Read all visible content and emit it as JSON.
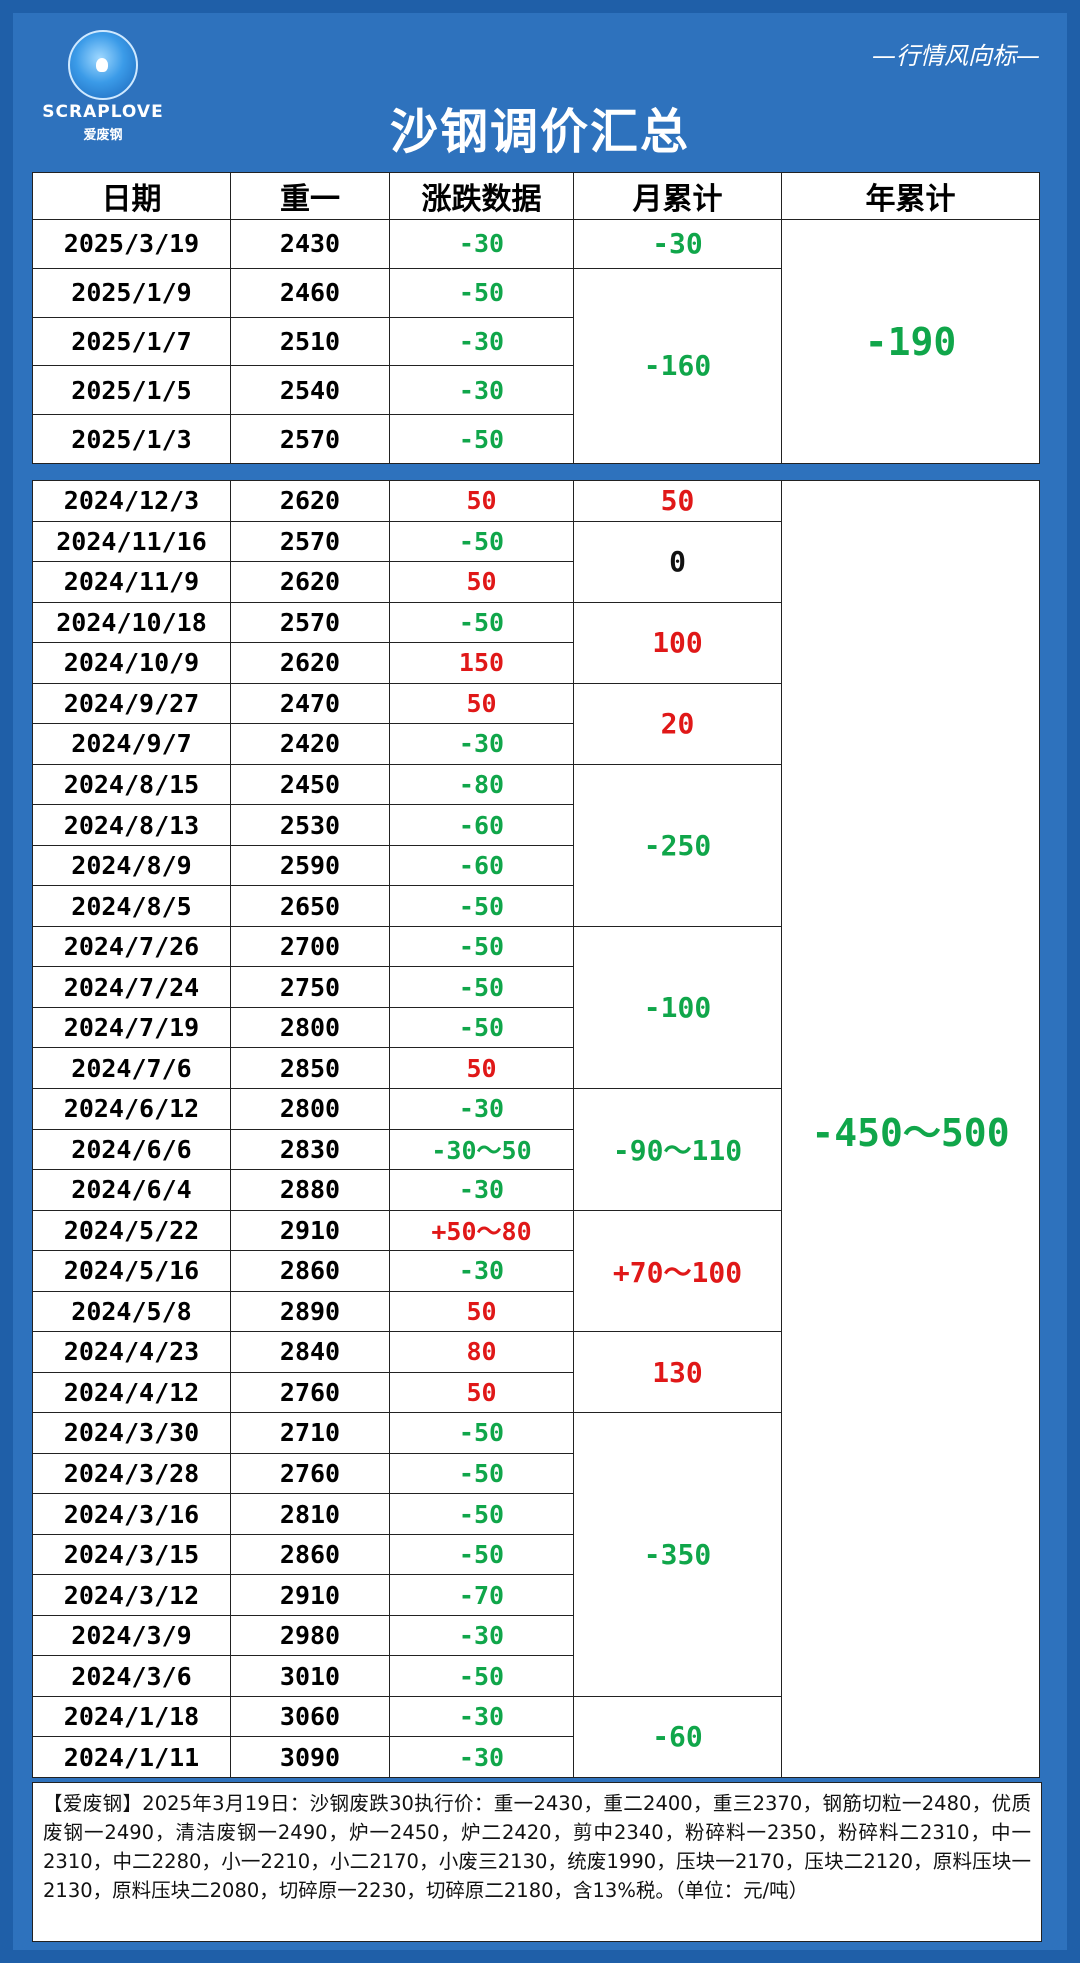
{
  "brand": {
    "logo_text": "SCRAPLOVE",
    "logo_sub": "爱废钢"
  },
  "header": {
    "title": "沙钢调价汇总",
    "slogan": "—行情风向标—"
  },
  "columns": [
    "日期",
    "重一",
    "涨跌数据",
    "月累计",
    "年累计"
  ],
  "table_2025": {
    "rows": [
      {
        "date": "2025/3/19",
        "price": "2430",
        "change": "-30",
        "dir": "neg"
      },
      {
        "date": "2025/1/9",
        "price": "2460",
        "change": "-50",
        "dir": "neg"
      },
      {
        "date": "2025/1/7",
        "price": "2510",
        "change": "-30",
        "dir": "neg"
      },
      {
        "date": "2025/1/5",
        "price": "2540",
        "change": "-30",
        "dir": "neg"
      },
      {
        "date": "2025/1/3",
        "price": "2570",
        "change": "-50",
        "dir": "neg"
      }
    ],
    "months": [
      {
        "value": "-30",
        "dir": "neg"
      },
      {
        "value": "-160",
        "dir": "neg"
      }
    ],
    "year": {
      "value": "-190",
      "dir": "neg"
    }
  },
  "table_2024": {
    "rows": [
      {
        "date": "2024/12/3",
        "price": "2620",
        "change": "50",
        "dir": "pos"
      },
      {
        "date": "2024/11/16",
        "price": "2570",
        "change": "-50",
        "dir": "neg"
      },
      {
        "date": "2024/11/9",
        "price": "2620",
        "change": "50",
        "dir": "pos"
      },
      {
        "date": "2024/10/18",
        "price": "2570",
        "change": "-50",
        "dir": "neg"
      },
      {
        "date": "2024/10/9",
        "price": "2620",
        "change": "150",
        "dir": "pos"
      },
      {
        "date": "2024/9/27",
        "price": "2470",
        "change": "50",
        "dir": "pos"
      },
      {
        "date": "2024/9/7",
        "price": "2420",
        "change": "-30",
        "dir": "neg"
      },
      {
        "date": "2024/8/15",
        "price": "2450",
        "change": "-80",
        "dir": "neg"
      },
      {
        "date": "2024/8/13",
        "price": "2530",
        "change": "-60",
        "dir": "neg"
      },
      {
        "date": "2024/8/9",
        "price": "2590",
        "change": "-60",
        "dir": "neg"
      },
      {
        "date": "2024/8/5",
        "price": "2650",
        "change": "-50",
        "dir": "neg"
      },
      {
        "date": "2024/7/26",
        "price": "2700",
        "change": "-50",
        "dir": "neg"
      },
      {
        "date": "2024/7/24",
        "price": "2750",
        "change": "-50",
        "dir": "neg"
      },
      {
        "date": "2024/7/19",
        "price": "2800",
        "change": "-50",
        "dir": "neg"
      },
      {
        "date": "2024/7/6",
        "price": "2850",
        "change": "50",
        "dir": "pos"
      },
      {
        "date": "2024/6/12",
        "price": "2800",
        "change": "-30",
        "dir": "neg"
      },
      {
        "date": "2024/6/6",
        "price": "2830",
        "change": "-30～50",
        "dir": "neg"
      },
      {
        "date": "2024/6/4",
        "price": "2880",
        "change": "-30",
        "dir": "neg"
      },
      {
        "date": "2024/5/22",
        "price": "2910",
        "change": "+50～80",
        "dir": "pos"
      },
      {
        "date": "2024/5/16",
        "price": "2860",
        "change": "-30",
        "dir": "neg"
      },
      {
        "date": "2024/5/8",
        "price": "2890",
        "change": "50",
        "dir": "pos"
      },
      {
        "date": "2024/4/23",
        "price": "2840",
        "change": "80",
        "dir": "pos"
      },
      {
        "date": "2024/4/12",
        "price": "2760",
        "change": "50",
        "dir": "pos"
      },
      {
        "date": "2024/3/30",
        "price": "2710",
        "change": "-50",
        "dir": "neg"
      },
      {
        "date": "2024/3/28",
        "price": "2760",
        "change": "-50",
        "dir": "neg"
      },
      {
        "date": "2024/3/16",
        "price": "2810",
        "change": "-50",
        "dir": "neg"
      },
      {
        "date": "2024/3/15",
        "price": "2860",
        "change": "-50",
        "dir": "neg"
      },
      {
        "date": "2024/3/12",
        "price": "2910",
        "change": "-70",
        "dir": "neg"
      },
      {
        "date": "2024/3/9",
        "price": "2980",
        "change": "-30",
        "dir": "neg"
      },
      {
        "date": "2024/3/6",
        "price": "3010",
        "change": "-50",
        "dir": "neg"
      },
      {
        "date": "2024/1/18",
        "price": "3060",
        "change": "-30",
        "dir": "neg"
      },
      {
        "date": "2024/1/11",
        "price": "3090",
        "change": "-30",
        "dir": "neg"
      }
    ],
    "months": [
      {
        "value": "50",
        "dir": "pos"
      },
      {
        "value": "0",
        "dir": "zero"
      },
      {
        "value": "100",
        "dir": "pos"
      },
      {
        "value": "20",
        "dir": "pos"
      },
      {
        "value": "-250",
        "dir": "neg"
      },
      {
        "value": "-100",
        "dir": "neg"
      },
      {
        "value": "-90～110",
        "dir": "neg"
      },
      {
        "value": "+70～100",
        "dir": "pos"
      },
      {
        "value": "130",
        "dir": "pos"
      },
      {
        "value": "-350",
        "dir": "neg"
      },
      {
        "value": "-60",
        "dir": "neg"
      }
    ],
    "year": {
      "value": "-450～500",
      "dir": "neg"
    }
  },
  "note": "【爱废钢】2025年3月19日：沙钢废跌30执行价：重一2430，重二2400，重三2370，钢筋切粒一2480，优质废钢一2490，清洁废钢一2490，炉一2450，炉二2420，剪中2340，粉碎料一2350，粉碎料二2310，中一2310，中二2280，小一2210，小二2170，小废三2130，统废1990，压块一2170，压块二2120，原料压块一2130，原料压块二2080，切碎原一2230，切碎原二2180，含13%税。（单位：元/吨）"
}
